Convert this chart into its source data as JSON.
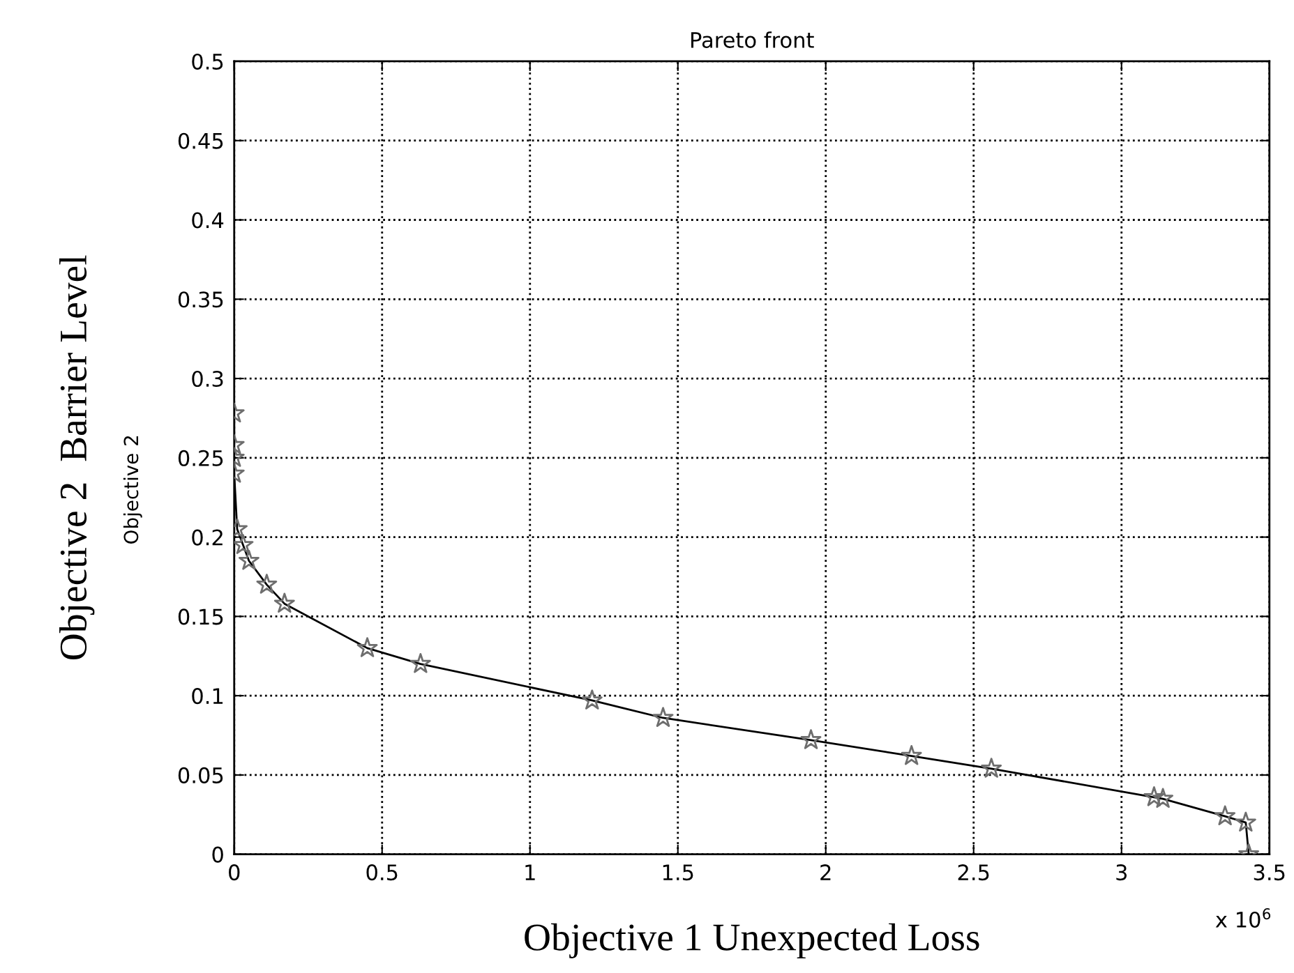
{
  "chart_data": {
    "type": "line",
    "title": "Pareto front",
    "xlabel": "Objective 1 Unexpected Loss",
    "ylabel": "Objective 2  Barrier Level",
    "annotations": [
      "Objective 2",
      "x 10$^{6}$"
    ],
    "x": [
      0,
      0,
      0,
      0,
      0.01,
      0.03,
      0.05,
      0.11,
      0.17,
      0.45,
      0.63,
      1.21,
      1.45,
      1.95,
      2.29,
      2.56,
      3.11,
      3.14,
      3.35,
      3.42,
      3.43
    ],
    "series": [
      {
        "color": "#000000",
        "marker": "none",
        "values": [
          0.278,
          0.258,
          0.25,
          0.24,
          0.205,
          0.195,
          0.185,
          0.17,
          0.158,
          0.13,
          0.12,
          0.097,
          0.086,
          0.072,
          0.062,
          0.054,
          0.036,
          0.035,
          0.024,
          0.02,
          0.0
        ]
      },
      {
        "type": "scatter",
        "color": "#6e6e6e",
        "marker": "star",
        "values": [
          0.278,
          0.258,
          0.25,
          0.24,
          0.205,
          0.195,
          0.185,
          0.17,
          0.158,
          0.13,
          0.12,
          0.097,
          0.086,
          0.072,
          0.062,
          0.054,
          0.036,
          0.035,
          0.024,
          0.02,
          0.0
        ]
      }
    ],
    "xlim": [
      0,
      3.5
    ],
    "xticks": [
      0,
      0.5,
      1,
      1.5,
      2,
      2.5,
      3,
      3.5
    ],
    "ylim": [
      0,
      0.5
    ],
    "yticks": [
      0,
      0.05,
      0.1,
      0.15,
      0.2,
      0.25,
      0.3,
      0.35,
      0.4,
      0.45,
      0.5
    ],
    "grid": true,
    "line_style": "solid"
  }
}
